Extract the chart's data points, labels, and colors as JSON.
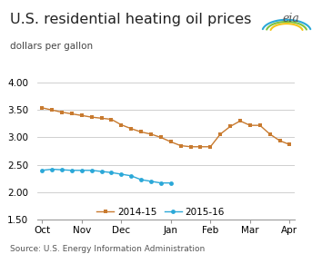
{
  "title": "U.S. residential heating oil prices",
  "ylabel": "dollars per gallon",
  "source": "Source: U.S. Energy Information Administration",
  "ylim": [
    1.5,
    4.0
  ],
  "yticks": [
    1.5,
    2.0,
    2.5,
    3.0,
    3.5,
    4.0
  ],
  "ytick_labels": [
    "1.50",
    "2.00",
    "2.50",
    "3.00",
    "3.50",
    "4.00"
  ],
  "background_color": "#ffffff",
  "grid_color": "#c8c8c8",
  "series_2014": {
    "label": "2014-15",
    "color": "#c87a2f",
    "marker": "s",
    "x": [
      0,
      1,
      2,
      3,
      4,
      5,
      6,
      7,
      8,
      9,
      10,
      11,
      12,
      13,
      14,
      15,
      16,
      17,
      18,
      19,
      20,
      21,
      22,
      23,
      24,
      25
    ],
    "y": [
      3.54,
      3.5,
      3.46,
      3.43,
      3.4,
      3.37,
      3.35,
      3.33,
      3.23,
      3.16,
      3.1,
      3.06,
      3.0,
      2.92,
      2.85,
      2.83,
      2.83,
      2.83,
      3.06,
      3.2,
      3.3,
      3.22,
      3.22,
      3.06,
      2.94,
      2.87
    ]
  },
  "series_2015": {
    "label": "2015-16",
    "color": "#2ba8d8",
    "marker": "o",
    "x": [
      0,
      1,
      2,
      3,
      4,
      5,
      6,
      7,
      8,
      9,
      10,
      11,
      12,
      13
    ],
    "y": [
      2.4,
      2.42,
      2.41,
      2.4,
      2.4,
      2.4,
      2.38,
      2.36,
      2.33,
      2.3,
      2.23,
      2.2,
      2.17,
      2.17
    ]
  },
  "x_month_positions": [
    0,
    4,
    8,
    13,
    17,
    21,
    25
  ],
  "x_month_labels": [
    "Oct",
    "Nov",
    "Dec",
    "Jan",
    "Feb",
    "Mar",
    "Apr"
  ],
  "title_fontsize": 11.5,
  "ylabel_fontsize": 7.5,
  "tick_fontsize": 7.5,
  "legend_fontsize": 7.5,
  "source_fontsize": 6.5
}
